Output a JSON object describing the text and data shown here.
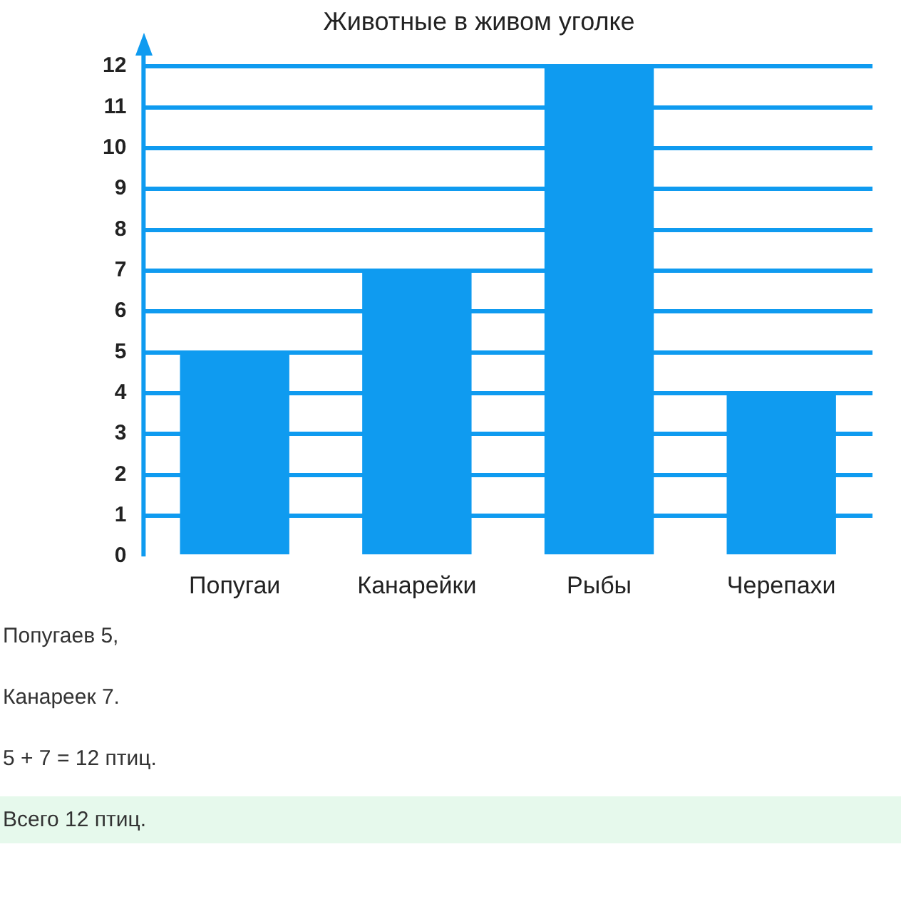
{
  "chart_data": {
    "type": "bar",
    "title": "Животные в живом уголке",
    "categories": [
      "Попугаи",
      "Канарейки",
      "Рыбы",
      "Черепахи"
    ],
    "values": [
      5,
      7,
      12,
      4
    ],
    "color": "#0f9bf0",
    "ylim": [
      0,
      12
    ],
    "yticks": [
      0,
      1,
      2,
      3,
      4,
      5,
      6,
      7,
      8,
      9,
      10,
      11,
      12
    ],
    "grid": "y",
    "legend": false,
    "annotations": [
      "Попугаев 5,",
      "Канареек 7.",
      "5 + 7 = 12 птиц.",
      "Всего 12 птиц."
    ]
  }
}
